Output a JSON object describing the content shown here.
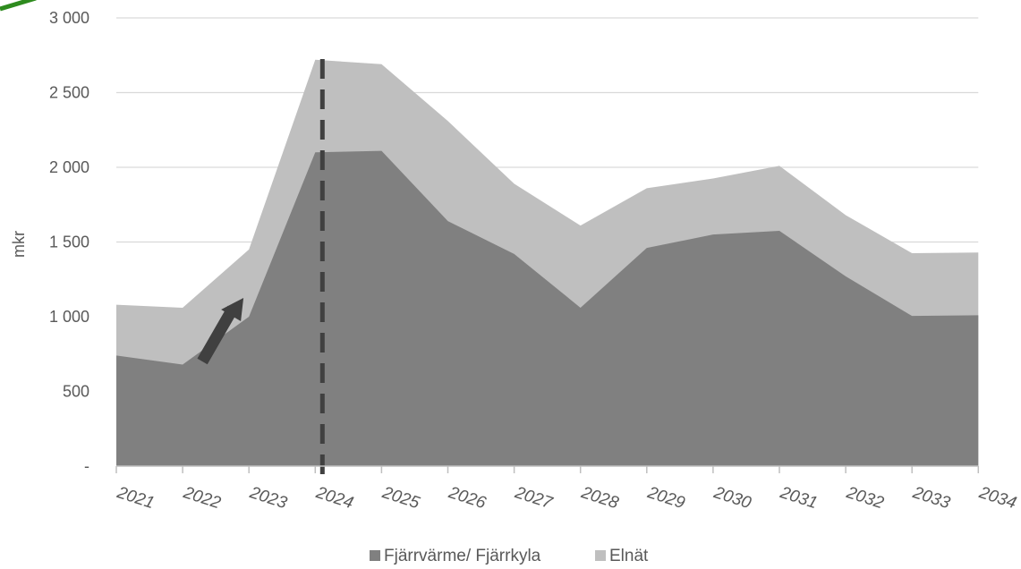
{
  "chart_data": {
    "type": "area",
    "stacked": true,
    "title": "",
    "xlabel": "",
    "ylabel": "mkr",
    "ylim": [
      0,
      3000
    ],
    "yticks": [
      0,
      500,
      1000,
      1500,
      2000,
      2500,
      3000
    ],
    "ytick_labels": [
      "-",
      "500",
      "1 000",
      "1 500",
      "2 000",
      "2 500",
      "3 000"
    ],
    "categories": [
      "2021",
      "2022",
      "2023",
      "2024",
      "2025",
      "2026",
      "2027",
      "2028",
      "2029",
      "2030",
      "2031",
      "2032",
      "2033",
      "2034"
    ],
    "series": [
      {
        "name": "Fjärrvärme/ Fjärrkyla",
        "color": "#808080",
        "values": [
          740,
          680,
          1000,
          2100,
          2110,
          1640,
          1420,
          1060,
          1460,
          1550,
          1575,
          1270,
          1005,
          1010
        ]
      },
      {
        "name": "Elnät",
        "color": "#bfbfbf",
        "values": [
          340,
          380,
          450,
          620,
          580,
          670,
          470,
          550,
          400,
          375,
          435,
          410,
          420,
          420
        ]
      }
    ],
    "grid": true,
    "legend_position": "bottom",
    "annotations": {
      "dashed_vertical_line_at": "2024",
      "arrow": "upward arrow near 2022–2023"
    },
    "colors": {
      "gridline": "#d9d9d9",
      "axis": "#bfbfbf",
      "marker": "#404040",
      "corner_accent": "#2e8b1e"
    }
  }
}
